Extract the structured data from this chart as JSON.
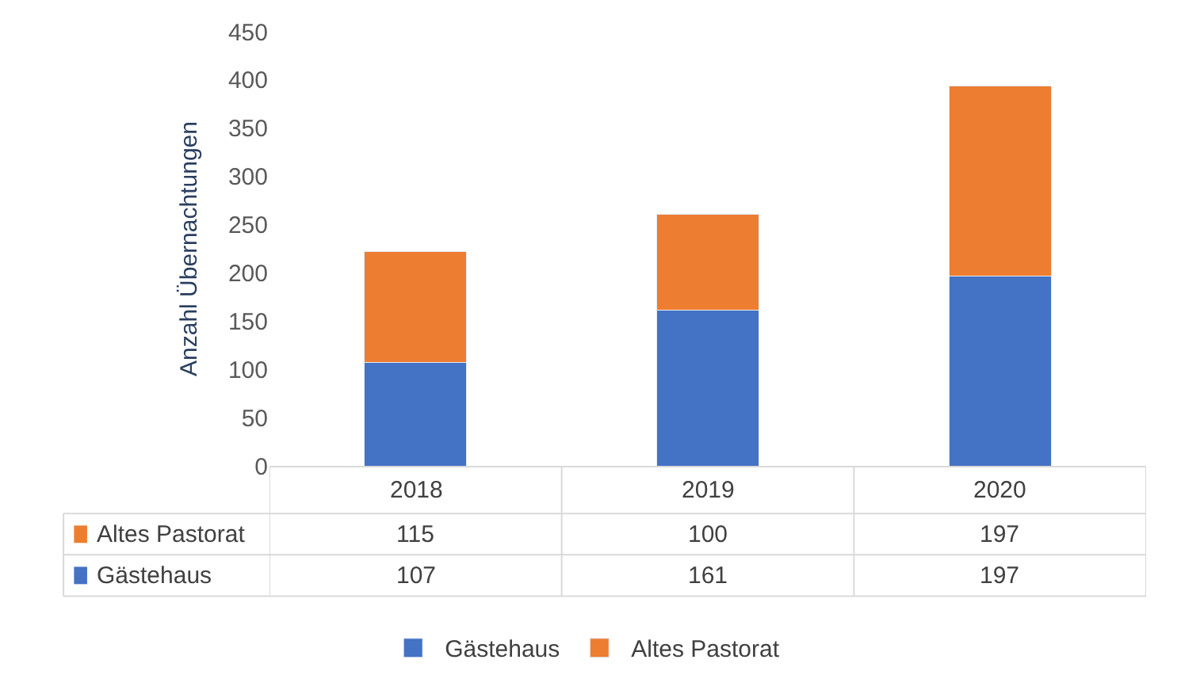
{
  "chart_data": {
    "type": "bar",
    "ylabel": "Anzahl Übernachtungen",
    "categories": [
      "2018",
      "2019",
      "2020"
    ],
    "stacked": true,
    "series": [
      {
        "name": "Gästehaus",
        "color": "#4472c4",
        "values": [
          107,
          161,
          197
        ]
      },
      {
        "name": "Altes Pastorat",
        "color": "#ed7d31",
        "values": [
          115,
          100,
          197
        ]
      }
    ],
    "ylim": [
      0,
      450
    ],
    "yticks": [
      0,
      50,
      100,
      150,
      200,
      250,
      300,
      350,
      400,
      450
    ],
    "legend": "bottom",
    "data_labels": true
  }
}
